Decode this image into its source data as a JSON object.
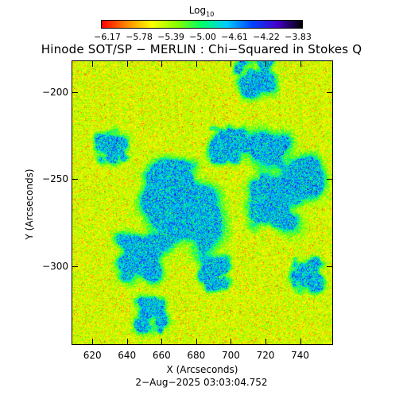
{
  "colorbar": {
    "title": "Log",
    "title_sub": "10",
    "tick_labels": [
      "−6.17",
      "−5.78",
      "−5.39",
      "−5.00",
      "−4.61",
      "−4.22",
      "−3.83"
    ],
    "range": [
      -6.17,
      -3.83
    ],
    "colormap_stops": [
      "#ff0000",
      "#ff8800",
      "#ffff00",
      "#88ff00",
      "#00ff66",
      "#00ccff",
      "#0044ff",
      "#4400cc",
      "#000000"
    ]
  },
  "figure": {
    "title": "Hinode SOT/SP − MERLIN : Chi−Squared in Stokes Q",
    "xlabel": "X (Arcseconds)",
    "ylabel": "Y (Arcseconds)",
    "timestamp": "2−Aug−2025 03:03:04.752",
    "x_ticks": [
      620,
      640,
      660,
      680,
      700,
      720,
      740
    ],
    "x_tick_labels": [
      "620",
      "640",
      "660",
      "680",
      "700",
      "720",
      "740"
    ],
    "y_ticks": [
      -200,
      -250,
      -300
    ],
    "y_tick_labels": [
      "−200",
      "−250",
      "−300"
    ],
    "x_range": [
      608,
      759
    ],
    "y_range": [
      -345,
      -182
    ]
  }
}
